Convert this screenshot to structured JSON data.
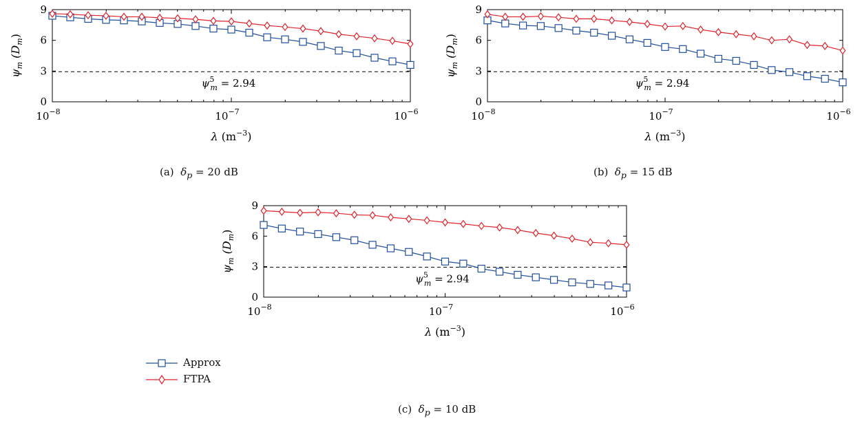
{
  "chart_data": [
    {
      "type": "line",
      "caption": "(a)  δ_p = 20 dB",
      "caption_prefix": "(a)",
      "caption_param": "δ",
      "caption_sub": "p",
      "caption_value": "= 20 dB",
      "xscale": "log",
      "xlim": [
        1e-08,
        1e-06
      ],
      "ylim": [
        0,
        9
      ],
      "xticks": [
        {
          "value": 1e-08,
          "base": "10",
          "exp": "−8"
        },
        {
          "value": 1e-07,
          "base": "10",
          "exp": "−7"
        },
        {
          "value": 1e-06,
          "base": "10",
          "exp": "−6"
        }
      ],
      "yticks": [
        "0",
        "3",
        "6",
        "9"
      ],
      "xlabel": {
        "symbol": "λ",
        "unit": "(m",
        "unit_exp": "−3",
        "close": ")"
      },
      "ylabel": {
        "symbol": "ψ",
        "sub": "m",
        "arg": "(D",
        "arg_sub": "m",
        "close": ")"
      },
      "threshold": {
        "value": 2.94,
        "symbol": "ψ",
        "sup": "5",
        "sub": "m",
        "text": "= 2.94"
      },
      "x": [
        1e-08,
        1.259e-08,
        1.585e-08,
        1.995e-08,
        2.512e-08,
        3.162e-08,
        3.981e-08,
        5.012e-08,
        6.31e-08,
        7.943e-08,
        1e-07,
        1.259e-07,
        1.585e-07,
        1.995e-07,
        2.512e-07,
        3.162e-07,
        3.981e-07,
        5.012e-07,
        6.31e-07,
        7.943e-07,
        1e-06
      ],
      "series": [
        {
          "name": "Approx",
          "marker": "square",
          "color": "#1f4e9c",
          "values": [
            8.4,
            8.25,
            8.1,
            8.0,
            7.95,
            7.85,
            7.7,
            7.6,
            7.4,
            7.15,
            7.05,
            6.75,
            6.3,
            6.1,
            5.85,
            5.45,
            5.0,
            4.75,
            4.3,
            3.95,
            3.6
          ]
        },
        {
          "name": "FTPA",
          "marker": "diamond",
          "color": "#e0212a",
          "values": [
            8.6,
            8.55,
            8.45,
            8.4,
            8.3,
            8.3,
            8.2,
            8.15,
            8.05,
            7.9,
            7.85,
            7.65,
            7.45,
            7.3,
            7.15,
            6.9,
            6.6,
            6.4,
            6.2,
            5.95,
            5.65
          ]
        }
      ]
    },
    {
      "type": "line",
      "caption": "(b)  δ_p = 15 dB",
      "caption_prefix": "(b)",
      "caption_param": "δ",
      "caption_sub": "p",
      "caption_value": "= 15 dB",
      "xscale": "log",
      "xlim": [
        1e-08,
        1e-06
      ],
      "ylim": [
        0,
        9
      ],
      "xticks": [
        {
          "value": 1e-08,
          "base": "10",
          "exp": "−8"
        },
        {
          "value": 1e-07,
          "base": "10",
          "exp": "−7"
        },
        {
          "value": 1e-06,
          "base": "10",
          "exp": "−6"
        }
      ],
      "yticks": [
        "0",
        "3",
        "6",
        "9"
      ],
      "xlabel": {
        "symbol": "λ",
        "unit": "(m",
        "unit_exp": "−3",
        "close": ")"
      },
      "ylabel": {
        "symbol": "ψ",
        "sub": "m",
        "arg": "(D",
        "arg_sub": "m",
        "close": ")"
      },
      "threshold": {
        "value": 2.94,
        "symbol": "ψ",
        "sup": "5",
        "sub": "m",
        "text": "= 2.94"
      },
      "x": [
        1e-08,
        1.259e-08,
        1.585e-08,
        1.995e-08,
        2.512e-08,
        3.162e-08,
        3.981e-08,
        5.012e-08,
        6.31e-08,
        7.943e-08,
        1e-07,
        1.259e-07,
        1.585e-07,
        1.995e-07,
        2.512e-07,
        3.162e-07,
        3.981e-07,
        5.012e-07,
        6.31e-07,
        7.943e-07,
        1e-06
      ],
      "series": [
        {
          "name": "Approx",
          "marker": "square",
          "color": "#1f4e9c",
          "values": [
            7.95,
            7.65,
            7.45,
            7.4,
            7.2,
            6.95,
            6.75,
            6.45,
            6.1,
            5.75,
            5.35,
            5.15,
            4.7,
            4.2,
            4.0,
            3.6,
            3.1,
            2.9,
            2.5,
            2.25,
            1.9
          ]
        },
        {
          "name": "FTPA",
          "marker": "diamond",
          "color": "#e0212a",
          "values": [
            8.55,
            8.3,
            8.3,
            8.35,
            8.25,
            8.1,
            8.1,
            7.95,
            7.8,
            7.6,
            7.35,
            7.4,
            7.05,
            6.8,
            6.6,
            6.4,
            6.0,
            6.1,
            5.55,
            5.45,
            5.0
          ]
        }
      ]
    },
    {
      "type": "line",
      "caption": "(c)  δ_p = 10 dB",
      "caption_prefix": "(c)",
      "caption_param": "δ",
      "caption_sub": "p",
      "caption_value": "= 10 dB",
      "xscale": "log",
      "xlim": [
        1e-08,
        1e-06
      ],
      "ylim": [
        0,
        9
      ],
      "xticks": [
        {
          "value": 1e-08,
          "base": "10",
          "exp": "−8"
        },
        {
          "value": 1e-07,
          "base": "10",
          "exp": "−7"
        },
        {
          "value": 1e-06,
          "base": "10",
          "exp": "−6"
        }
      ],
      "yticks": [
        "0",
        "3",
        "6",
        "9"
      ],
      "xlabel": {
        "symbol": "λ",
        "unit": "(m",
        "unit_exp": "−3",
        "close": ")"
      },
      "ylabel": {
        "symbol": "ψ",
        "sub": "m",
        "arg": "(D",
        "arg_sub": "m",
        "close": ")"
      },
      "threshold": {
        "value": 2.94,
        "symbol": "ψ",
        "sup": "5",
        "sub": "m",
        "text": "= 2.94"
      },
      "x": [
        1e-08,
        1.259e-08,
        1.585e-08,
        1.995e-08,
        2.512e-08,
        3.162e-08,
        3.981e-08,
        5.012e-08,
        6.31e-08,
        7.943e-08,
        1e-07,
        1.259e-07,
        1.585e-07,
        1.995e-07,
        2.512e-07,
        3.162e-07,
        3.981e-07,
        5.012e-07,
        6.31e-07,
        7.943e-07,
        1e-06
      ],
      "series": [
        {
          "name": "Approx",
          "marker": "square",
          "color": "#1f4e9c",
          "values": [
            7.1,
            6.75,
            6.45,
            6.2,
            5.9,
            5.6,
            5.15,
            4.8,
            4.45,
            4.0,
            3.5,
            3.3,
            2.8,
            2.5,
            2.2,
            1.95,
            1.7,
            1.45,
            1.3,
            1.15,
            0.95
          ]
        },
        {
          "name": "FTPA",
          "marker": "diamond",
          "color": "#e0212a",
          "values": [
            8.5,
            8.4,
            8.3,
            8.35,
            8.25,
            8.1,
            8.05,
            7.85,
            7.7,
            7.55,
            7.35,
            7.2,
            7.0,
            6.85,
            6.6,
            6.3,
            6.05,
            5.75,
            5.4,
            5.3,
            5.15
          ]
        }
      ]
    }
  ],
  "legend": {
    "items": [
      {
        "name": "Approx",
        "marker": "square",
        "color": "#1f4e9c"
      },
      {
        "name": "FTPA",
        "marker": "diamond",
        "color": "#e0212a"
      }
    ]
  }
}
